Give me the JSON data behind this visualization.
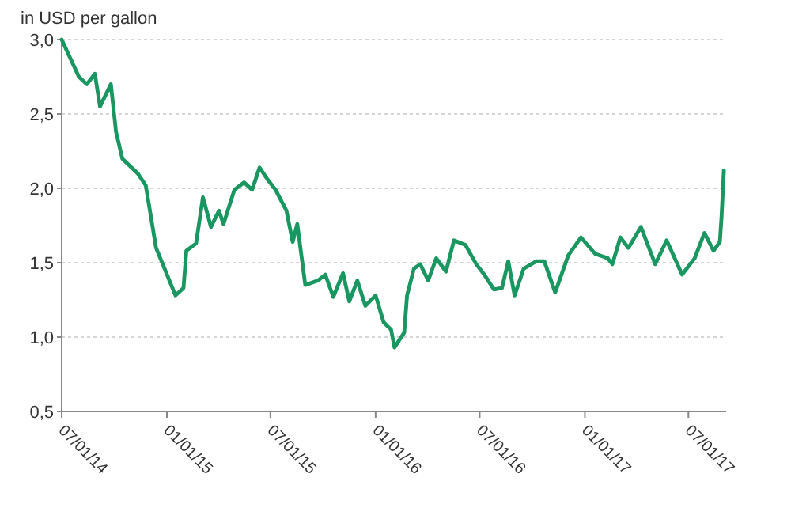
{
  "chart_data": {
    "type": "line",
    "ylabel": "in USD per gallon",
    "x": [
      "2014-07-01",
      "2014-07-31",
      "2014-08-14",
      "2014-08-28",
      "2014-09-06",
      "2014-09-25",
      "2014-10-04",
      "2014-10-15",
      "2014-11-11",
      "2014-11-25",
      "2014-12-13",
      "2015-01-16",
      "2015-01-30",
      "2015-02-04",
      "2015-02-21",
      "2015-03-05",
      "2015-03-19",
      "2015-04-02",
      "2015-04-10",
      "2015-04-29",
      "2015-05-16",
      "2015-05-30",
      "2015-06-12",
      "2015-06-26",
      "2015-07-10",
      "2015-07-29",
      "2015-08-09",
      "2015-08-17",
      "2015-08-31",
      "2015-09-22",
      "2015-10-05",
      "2015-10-19",
      "2015-11-05",
      "2015-11-16",
      "2015-11-30",
      "2015-12-14",
      "2016-01-01",
      "2016-01-15",
      "2016-01-28",
      "2016-02-03",
      "2016-02-20",
      "2016-02-25",
      "2016-03-08",
      "2016-03-19",
      "2016-04-02",
      "2016-04-16",
      "2016-05-03",
      "2016-05-17",
      "2016-06-06",
      "2016-06-25",
      "2016-07-09",
      "2016-07-26",
      "2016-08-09",
      "2016-08-20",
      "2016-08-31",
      "2016-09-16",
      "2016-10-08",
      "2016-10-22",
      "2016-11-10",
      "2016-12-03",
      "2016-12-25",
      "2017-01-19",
      "2017-02-10",
      "2017-02-18",
      "2017-03-04",
      "2017-03-18",
      "2017-04-09",
      "2017-05-04",
      "2017-05-24",
      "2017-06-20",
      "2017-07-12",
      "2017-07-29",
      "2017-08-14",
      "2017-08-25",
      "2017-08-28",
      "2017-09-01"
    ],
    "series": [
      {
        "color": "#1a9660",
        "values": [
          3.0,
          2.75,
          2.7,
          2.77,
          2.55,
          2.7,
          2.38,
          2.2,
          2.1,
          2.02,
          1.6,
          1.28,
          1.33,
          1.58,
          1.63,
          1.94,
          1.74,
          1.85,
          1.76,
          1.99,
          2.04,
          1.99,
          2.14,
          2.06,
          1.99,
          1.85,
          1.64,
          1.76,
          1.35,
          1.38,
          1.42,
          1.27,
          1.43,
          1.24,
          1.38,
          1.21,
          1.28,
          1.1,
          1.05,
          0.93,
          1.03,
          1.28,
          1.46,
          1.49,
          1.38,
          1.53,
          1.44,
          1.65,
          1.62,
          1.49,
          1.42,
          1.32,
          1.33,
          1.51,
          1.28,
          1.46,
          1.51,
          1.51,
          1.3,
          1.55,
          1.67,
          1.56,
          1.53,
          1.49,
          1.67,
          1.6,
          1.74,
          1.49,
          1.65,
          1.42,
          1.53,
          1.7,
          1.58,
          1.64,
          1.81,
          2.12
        ]
      }
    ],
    "xlim": [
      "2014-07-01",
      "2017-09-05"
    ],
    "xticks": [
      {
        "value": "2014-07-01",
        "label": "07/01/14"
      },
      {
        "value": "2015-01-01",
        "label": "01/01/15"
      },
      {
        "value": "2015-07-01",
        "label": "07/01/15"
      },
      {
        "value": "2016-01-01",
        "label": "01/01/16"
      },
      {
        "value": "2016-07-01",
        "label": "07/01/16"
      },
      {
        "value": "2017-01-01",
        "label": "01/01/17"
      },
      {
        "value": "2017-07-01",
        "label": "07/01/17"
      }
    ],
    "ylim": [
      0.5,
      3.0
    ],
    "yticks": [
      {
        "value": 0.5,
        "label": "0,5"
      },
      {
        "value": 1,
        "label": "1,0"
      },
      {
        "value": 1.5,
        "label": "1,5"
      },
      {
        "value": 2,
        "label": "2,0"
      },
      {
        "value": 2.5,
        "label": "2,5"
      },
      {
        "value": 3,
        "label": "3,0"
      }
    ],
    "grid": "y",
    "marker": "none",
    "line_style": "solid"
  }
}
